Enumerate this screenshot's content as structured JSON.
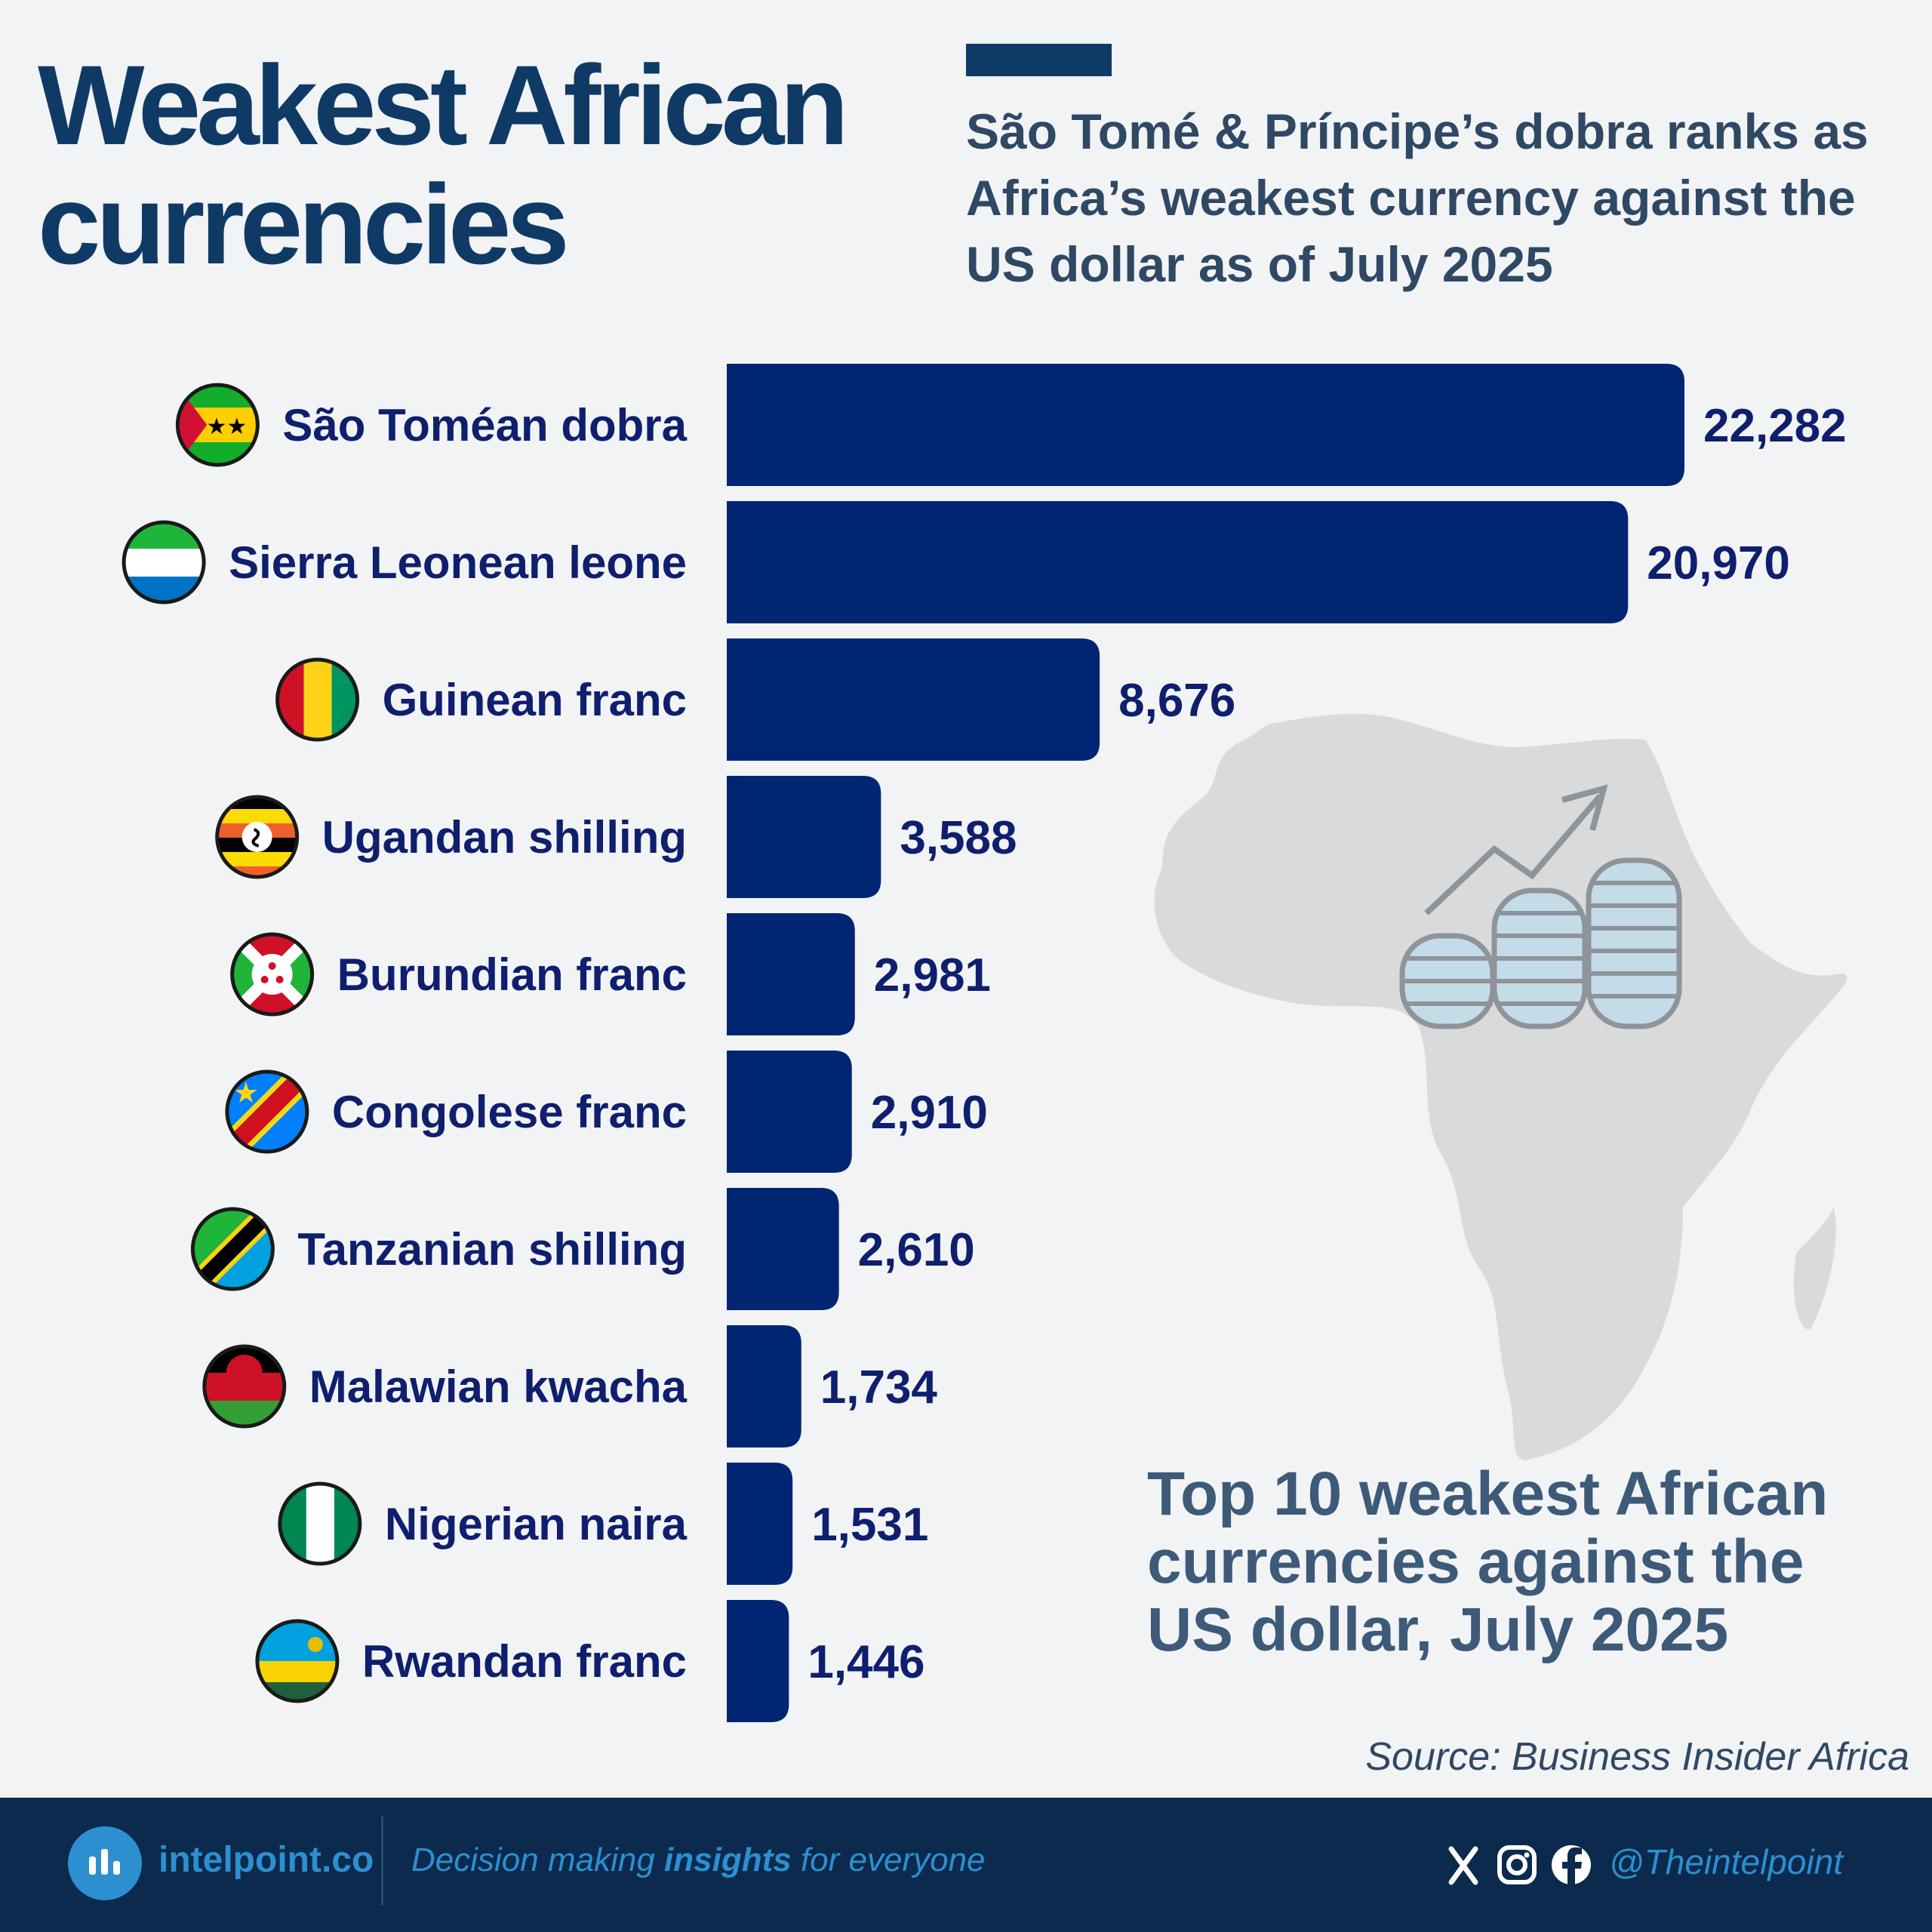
{
  "header": {
    "title_line1": "Weakest African",
    "title_line2": "currencies",
    "subtitle": "São Tomé & Príncipe’s dobra ranks as Africa’s weakest currency against the US dollar as of July 2025"
  },
  "colors": {
    "bar": "#002673",
    "title": "#0f3a66",
    "label": "#0f1f6e",
    "map": "#d9dadc",
    "footer": "#0b2a4d",
    "footer_accent": "#2c8fd0"
  },
  "chart_data": {
    "type": "bar",
    "orientation": "horizontal",
    "categories": [
      "São Toméan dobra",
      "Sierra Leonean leone",
      "Guinean franc",
      "Ugandan shilling",
      "Burundian franc",
      "Congolese franc",
      "Tanzanian shilling",
      "Malawian kwacha",
      "Nigerian naira",
      "Rwandan franc"
    ],
    "values": [
      22282,
      20970,
      8676,
      3588,
      2981,
      2910,
      2610,
      1734,
      1531,
      1446
    ],
    "value_labels": [
      "22,282",
      "20,970",
      "8,676",
      "3,588",
      "2,981",
      "2,910",
      "2,610",
      "1,734",
      "1,531",
      "1,446"
    ],
    "flag_icons": [
      "sao-tome-flag-icon",
      "sierra-leone-flag-icon",
      "guinea-flag-icon",
      "uganda-flag-icon",
      "burundi-flag-icon",
      "congo-dr-flag-icon",
      "tanzania-flag-icon",
      "malawi-flag-icon",
      "nigeria-flag-icon",
      "rwanda-flag-icon"
    ],
    "xlim": [
      0,
      22282
    ],
    "grid": false
  },
  "illustration": {
    "icon": "africa-map-coins-icon"
  },
  "caption": "Top 10 weakest African currencies against the US dollar, July 2025",
  "source": "Source: Business Insider Africa",
  "footer": {
    "logo_icon": "intelpoint-logo-icon",
    "brand": "intelpoint.co",
    "tagline_pre": "Decision making ",
    "tagline_bold": "insights",
    "tagline_post": " for everyone",
    "social_icons": [
      "x-icon",
      "instagram-icon",
      "facebook-icon"
    ],
    "handle": "@Theintelpoint"
  }
}
